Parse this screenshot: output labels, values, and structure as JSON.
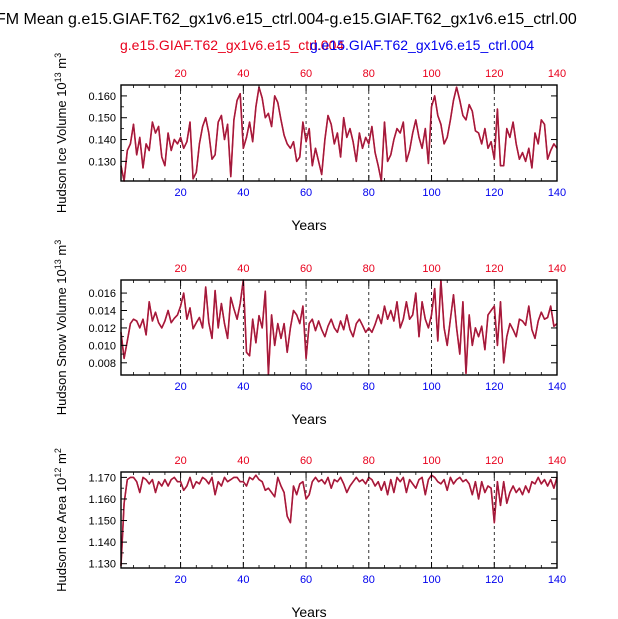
{
  "title": "FM Mean g.e15.GIAF.T62_gx1v6.e15_ctrl.004-g.e15.GIAF.T62_gx1v6.e15_ctrl.00",
  "legend": {
    "red": "g.e15.GIAF.T62_gx1v6.e15_ctrl.004",
    "blue": "g.e15.GIAF.T62_gx1v6.e15_ctrl.004",
    "red_color": "#e8001c",
    "blue_color": "#0000ee"
  },
  "colors": {
    "series1": "#e8001c",
    "series2": "#9b1d40"
  },
  "chart_data": [
    {
      "type": "line",
      "ylabel_prefix": "Hudson Ice Volume 10",
      "ylabel_exp": "13",
      "ylabel_unit": " m",
      "ylabel_unit_exp": "3",
      "xlabel": "Years",
      "xlim": [
        1,
        140
      ],
      "ylim": [
        0.121,
        0.165
      ],
      "yticks": [
        "0.130",
        "0.140",
        "0.150",
        "0.160"
      ],
      "ytick_values": [
        0.13,
        0.14,
        0.15,
        0.16
      ],
      "top_xticks": [
        "20",
        "40",
        "60",
        "80",
        "100",
        "120",
        "140"
      ],
      "bottom_xticks": [
        "20",
        "40",
        "60",
        "80",
        "100",
        "120",
        "140"
      ],
      "dashed_x": [
        20,
        40,
        60,
        80,
        100,
        120
      ],
      "series": [
        {
          "name": "g.e15.GIAF.T62_gx1v6.e15_ctrl.004 (red)",
          "values": [
            0.128,
            0.121,
            0.135,
            0.138,
            0.147,
            0.133,
            0.141,
            0.127,
            0.138,
            0.135,
            0.148,
            0.143,
            0.146,
            0.132,
            0.128,
            0.143,
            0.135,
            0.14,
            0.138,
            0.141,
            0.136,
            0.139,
            0.148,
            0.122,
            0.125,
            0.138,
            0.146,
            0.15,
            0.143,
            0.131,
            0.133,
            0.148,
            0.151,
            0.14,
            0.147,
            0.123,
            0.149,
            0.158,
            0.161,
            0.136,
            0.141,
            0.148,
            0.139,
            0.155,
            0.164,
            0.159,
            0.15,
            0.152,
            0.146,
            0.16,
            0.157,
            0.149,
            0.142,
            0.138,
            0.136,
            0.139,
            0.13,
            0.132,
            0.148,
            0.139,
            0.145,
            0.128,
            0.136,
            0.13,
            0.124,
            0.14,
            0.151,
            0.147,
            0.138,
            0.143,
            0.132,
            0.15,
            0.141,
            0.145,
            0.139,
            0.13,
            0.143,
            0.136,
            0.141,
            0.138,
            0.146,
            0.134,
            0.128,
            0.121,
            0.148,
            0.13,
            0.133,
            0.14,
            0.145,
            0.143,
            0.148,
            0.13,
            0.135,
            0.143,
            0.149,
            0.141,
            0.136,
            0.145,
            0.129,
            0.155,
            0.16,
            0.151,
            0.147,
            0.138,
            0.141,
            0.149,
            0.158,
            0.164,
            0.158,
            0.151,
            0.149,
            0.156,
            0.153,
            0.144,
            0.143,
            0.138,
            0.145,
            0.136,
            0.139,
            0.131,
            0.154,
            0.128,
            0.128,
            0.145,
            0.141,
            0.148,
            0.138,
            0.131,
            0.134,
            0.13,
            0.136,
            0.127,
            0.143,
            0.138,
            0.149,
            0.147,
            0.131,
            0.135,
            0.138,
            0.136
          ]
        },
        {
          "name": "g.e15.GIAF.T62_gx1v6.e15_ctrl.004 (blue)",
          "values": [
            0.128,
            0.121,
            0.135,
            0.138,
            0.147,
            0.133,
            0.141,
            0.127,
            0.138,
            0.135,
            0.148,
            0.143,
            0.146,
            0.132,
            0.128,
            0.143,
            0.135,
            0.14,
            0.138,
            0.141,
            0.136,
            0.139,
            0.148,
            0.122,
            0.125,
            0.138,
            0.146,
            0.15,
            0.143,
            0.131,
            0.133,
            0.148,
            0.151,
            0.14,
            0.147,
            0.123,
            0.149,
            0.158,
            0.161,
            0.136,
            0.141,
            0.148,
            0.139,
            0.155,
            0.164,
            0.159,
            0.15,
            0.152,
            0.146,
            0.16,
            0.157,
            0.149,
            0.142,
            0.138,
            0.136,
            0.139,
            0.13,
            0.132,
            0.148,
            0.139,
            0.145,
            0.128,
            0.136,
            0.13,
            0.124,
            0.14,
            0.151,
            0.147,
            0.138,
            0.143,
            0.132,
            0.15,
            0.141,
            0.145,
            0.139,
            0.13,
            0.143,
            0.136,
            0.141,
            0.138,
            0.146,
            0.134,
            0.128,
            0.121,
            0.148,
            0.13,
            0.133,
            0.14,
            0.145,
            0.143,
            0.148,
            0.13,
            0.135,
            0.143,
            0.149,
            0.141,
            0.136,
            0.145,
            0.129,
            0.155,
            0.16,
            0.151,
            0.147,
            0.138,
            0.141,
            0.149,
            0.158,
            0.164,
            0.158,
            0.151,
            0.149,
            0.156,
            0.153,
            0.144,
            0.143,
            0.138,
            0.145,
            0.136,
            0.139,
            0.131,
            0.154,
            0.128,
            0.128,
            0.145,
            0.141,
            0.148,
            0.138,
            0.131,
            0.134,
            0.13,
            0.136,
            0.127,
            0.143,
            0.138,
            0.149,
            0.147,
            0.131,
            0.135,
            0.138,
            0.136
          ]
        }
      ]
    },
    {
      "type": "line",
      "ylabel_prefix": "Hudson Snow Volume 10",
      "ylabel_exp": "13",
      "ylabel_unit": " m",
      "ylabel_unit_exp": "3",
      "xlabel": "Years",
      "xlim": [
        1,
        140
      ],
      "ylim": [
        0.0066,
        0.0175
      ],
      "yticks": [
        "0.008",
        "0.010",
        "0.012",
        "0.014",
        "0.016"
      ],
      "ytick_values": [
        0.008,
        0.01,
        0.012,
        0.014,
        0.016
      ],
      "top_xticks": [
        "20",
        "40",
        "60",
        "80",
        "100",
        "120",
        "140"
      ],
      "bottom_xticks": [
        "20",
        "40",
        "60",
        "80",
        "100",
        "120",
        "140"
      ],
      "dashed_x": [
        20,
        40,
        60,
        80,
        100,
        120
      ],
      "series": [
        {
          "name": "g.e15.GIAF.T62_gx1v6.e15_ctrl.004 (red)",
          "values": [
            0.0115,
            0.0085,
            0.0105,
            0.0125,
            0.013,
            0.0128,
            0.012,
            0.013,
            0.0112,
            0.015,
            0.0128,
            0.0138,
            0.0126,
            0.012,
            0.0128,
            0.014,
            0.0126,
            0.0131,
            0.0135,
            0.0145,
            0.016,
            0.013,
            0.0143,
            0.0119,
            0.0126,
            0.0132,
            0.012,
            0.0167,
            0.0126,
            0.0108,
            0.0163,
            0.012,
            0.0148,
            0.0125,
            0.0108,
            0.0155,
            0.0142,
            0.013,
            0.0148,
            0.0175,
            0.0092,
            0.0088,
            0.013,
            0.0103,
            0.0134,
            0.012,
            0.0162,
            0.0067,
            0.0135,
            0.01,
            0.0125,
            0.0108,
            0.0125,
            0.0092,
            0.012,
            0.014,
            0.0135,
            0.0125,
            0.0145,
            0.0085,
            0.0125,
            0.013,
            0.0117,
            0.0128,
            0.0118,
            0.011,
            0.0122,
            0.013,
            0.012,
            0.0115,
            0.0128,
            0.0118,
            0.0135,
            0.0118,
            0.011,
            0.0125,
            0.013,
            0.0123,
            0.0115,
            0.012,
            0.0115,
            0.0124,
            0.0135,
            0.0125,
            0.0145,
            0.013,
            0.014,
            0.0128,
            0.015,
            0.012,
            0.013,
            0.015,
            0.013,
            0.0135,
            0.016,
            0.011,
            0.015,
            0.013,
            0.012,
            0.0135,
            0.0165,
            0.0105,
            0.0175,
            0.012,
            0.01,
            0.013,
            0.0158,
            0.012,
            0.009,
            0.015,
            0.0068,
            0.0135,
            0.01,
            0.012,
            0.011,
            0.0122,
            0.0095,
            0.0135,
            0.014,
            0.0145,
            0.01,
            0.015,
            0.008,
            0.011,
            0.0125,
            0.0118,
            0.011,
            0.013,
            0.0128,
            0.0123,
            0.0145,
            0.0118,
            0.0108,
            0.0128,
            0.0138,
            0.013,
            0.0132,
            0.0145,
            0.0122,
            0.0125
          ]
        },
        {
          "name": "g.e15.GIAF.T62_gx1v6.e15_ctrl.004 (blue)",
          "values": [
            0.0115,
            0.0085,
            0.0105,
            0.0125,
            0.013,
            0.0128,
            0.012,
            0.013,
            0.0112,
            0.015,
            0.0128,
            0.0138,
            0.0126,
            0.012,
            0.0128,
            0.014,
            0.0126,
            0.0131,
            0.0135,
            0.0145,
            0.016,
            0.013,
            0.0143,
            0.0119,
            0.0126,
            0.0132,
            0.012,
            0.0167,
            0.0126,
            0.0108,
            0.0163,
            0.012,
            0.0148,
            0.0125,
            0.0108,
            0.0155,
            0.0142,
            0.013,
            0.0148,
            0.0175,
            0.0092,
            0.0088,
            0.013,
            0.0103,
            0.0134,
            0.012,
            0.0162,
            0.0067,
            0.0135,
            0.01,
            0.0125,
            0.0108,
            0.0125,
            0.0092,
            0.012,
            0.014,
            0.0135,
            0.0125,
            0.0145,
            0.0085,
            0.0125,
            0.013,
            0.0117,
            0.0128,
            0.0118,
            0.011,
            0.0122,
            0.013,
            0.012,
            0.0115,
            0.0128,
            0.0118,
            0.0135,
            0.0118,
            0.011,
            0.0125,
            0.013,
            0.0123,
            0.0115,
            0.012,
            0.0115,
            0.0124,
            0.0135,
            0.0125,
            0.0145,
            0.013,
            0.014,
            0.0128,
            0.015,
            0.012,
            0.013,
            0.015,
            0.013,
            0.0135,
            0.016,
            0.011,
            0.015,
            0.013,
            0.012,
            0.0135,
            0.0165,
            0.0105,
            0.0175,
            0.012,
            0.01,
            0.013,
            0.0158,
            0.012,
            0.009,
            0.015,
            0.0068,
            0.0135,
            0.01,
            0.012,
            0.011,
            0.0122,
            0.0095,
            0.0135,
            0.014,
            0.0145,
            0.01,
            0.015,
            0.008,
            0.011,
            0.0125,
            0.0118,
            0.011,
            0.013,
            0.0128,
            0.0123,
            0.0145,
            0.0118,
            0.0108,
            0.0128,
            0.0138,
            0.013,
            0.0132,
            0.0145,
            0.0122,
            0.0125
          ]
        }
      ]
    },
    {
      "type": "line",
      "ylabel_prefix": "Hudson Ice Area 10",
      "ylabel_exp": "12",
      "ylabel_unit": " m",
      "ylabel_unit_exp": "2",
      "xlabel": "Years",
      "xlim": [
        1,
        140
      ],
      "ylim": [
        1.128,
        1.1725
      ],
      "yticks": [
        "1.130",
        "1.140",
        "1.150",
        "1.160",
        "1.170"
      ],
      "ytick_values": [
        1.13,
        1.14,
        1.15,
        1.16,
        1.17
      ],
      "top_xticks": [
        "20",
        "40",
        "60",
        "80",
        "100",
        "120",
        "140"
      ],
      "bottom_xticks": [
        "20",
        "40",
        "60",
        "80",
        "100",
        "120",
        "140"
      ],
      "dashed_x": [
        20,
        40,
        60,
        80,
        100,
        120
      ],
      "series": [
        {
          "name": "g.e15.GIAF.T62_gx1v6.e15_ctrl.004 (red)",
          "values": [
            1.129,
            1.158,
            1.169,
            1.17,
            1.17,
            1.168,
            1.163,
            1.17,
            1.169,
            1.167,
            1.169,
            1.163,
            1.168,
            1.166,
            1.169,
            1.166,
            1.169,
            1.17,
            1.168,
            1.168,
            1.164,
            1.166,
            1.17,
            1.165,
            1.168,
            1.167,
            1.17,
            1.169,
            1.167,
            1.17,
            1.162,
            1.168,
            1.166,
            1.17,
            1.168,
            1.169,
            1.17,
            1.17,
            1.168,
            1.168,
            1.166,
            1.17,
            1.169,
            1.171,
            1.169,
            1.168,
            1.164,
            1.165,
            1.163,
            1.161,
            1.17,
            1.166,
            1.163,
            1.152,
            1.149,
            1.166,
            1.162,
            1.167,
            1.168,
            1.16,
            1.162,
            1.168,
            1.17,
            1.168,
            1.169,
            1.167,
            1.17,
            1.165,
            1.169,
            1.168,
            1.17,
            1.167,
            1.163,
            1.166,
            1.168,
            1.17,
            1.168,
            1.169,
            1.167,
            1.17,
            1.169,
            1.166,
            1.168,
            1.164,
            1.168,
            1.162,
            1.169,
            1.163,
            1.17,
            1.168,
            1.17,
            1.163,
            1.169,
            1.167,
            1.165,
            1.169,
            1.17,
            1.162,
            1.169,
            1.171,
            1.17,
            1.168,
            1.167,
            1.169,
            1.164,
            1.17,
            1.167,
            1.169,
            1.17,
            1.168,
            1.169,
            1.167,
            1.162,
            1.168,
            1.16,
            1.168,
            1.163,
            1.166,
            1.165,
            1.149,
            1.168,
            1.157,
            1.168,
            1.158,
            1.163,
            1.166,
            1.163,
            1.165,
            1.162,
            1.166,
            1.163,
            1.168,
            1.167,
            1.17,
            1.167,
            1.169,
            1.166,
            1.169,
            1.165,
            1.17
          ]
        },
        {
          "name": "g.e15.GIAF.T62_gx1v6.e15_ctrl.004 (blue)",
          "values": [
            1.129,
            1.158,
            1.169,
            1.17,
            1.17,
            1.168,
            1.163,
            1.17,
            1.169,
            1.167,
            1.169,
            1.163,
            1.168,
            1.166,
            1.169,
            1.166,
            1.169,
            1.17,
            1.168,
            1.168,
            1.164,
            1.166,
            1.17,
            1.165,
            1.168,
            1.167,
            1.17,
            1.169,
            1.167,
            1.17,
            1.162,
            1.168,
            1.166,
            1.17,
            1.168,
            1.169,
            1.17,
            1.17,
            1.168,
            1.168,
            1.166,
            1.17,
            1.169,
            1.171,
            1.169,
            1.168,
            1.164,
            1.165,
            1.163,
            1.161,
            1.17,
            1.166,
            1.163,
            1.152,
            1.149,
            1.166,
            1.162,
            1.167,
            1.168,
            1.16,
            1.162,
            1.168,
            1.17,
            1.168,
            1.169,
            1.167,
            1.17,
            1.165,
            1.169,
            1.168,
            1.17,
            1.167,
            1.163,
            1.166,
            1.168,
            1.17,
            1.168,
            1.169,
            1.167,
            1.17,
            1.169,
            1.166,
            1.168,
            1.164,
            1.168,
            1.162,
            1.169,
            1.163,
            1.17,
            1.168,
            1.17,
            1.163,
            1.169,
            1.167,
            1.165,
            1.169,
            1.17,
            1.162,
            1.169,
            1.171,
            1.17,
            1.168,
            1.167,
            1.169,
            1.164,
            1.17,
            1.167,
            1.169,
            1.17,
            1.168,
            1.169,
            1.167,
            1.162,
            1.168,
            1.16,
            1.168,
            1.163,
            1.166,
            1.165,
            1.149,
            1.168,
            1.157,
            1.168,
            1.158,
            1.163,
            1.166,
            1.163,
            1.165,
            1.162,
            1.166,
            1.163,
            1.168,
            1.167,
            1.17,
            1.167,
            1.169,
            1.166,
            1.169,
            1.165,
            1.17
          ]
        }
      ]
    }
  ]
}
